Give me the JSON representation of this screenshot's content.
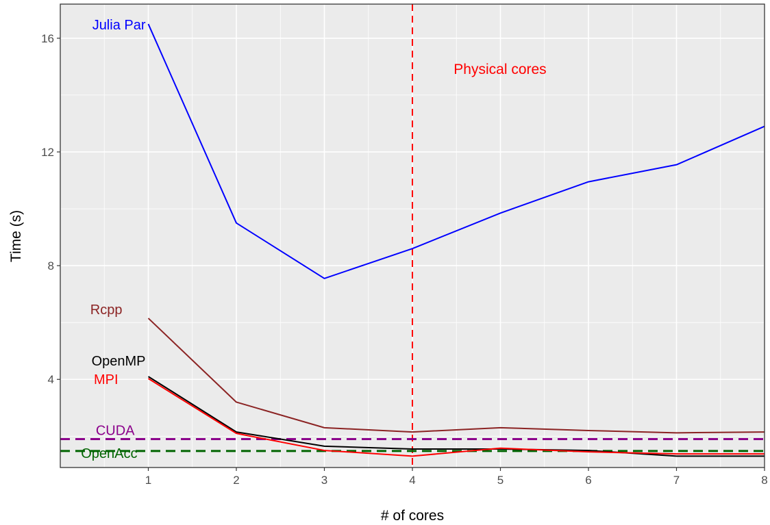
{
  "chart_data": {
    "type": "line",
    "title": "",
    "xlabel": "# of cores",
    "ylabel": "Time (s)",
    "x": [
      1,
      2,
      3,
      4,
      5,
      6,
      7,
      8
    ],
    "xlim": [
      0.0,
      8.0
    ],
    "ylim": [
      0.9,
      17.2
    ],
    "xticks": [
      1,
      2,
      3,
      4,
      5,
      6,
      7,
      8
    ],
    "yticks": [
      4,
      8,
      12,
      16
    ],
    "grid": true,
    "background": "#EBEBEB",
    "series": [
      {
        "name": "Julia Par",
        "color": "#0000FF",
        "style": "solid",
        "values": [
          16.5,
          9.5,
          7.55,
          8.6,
          9.85,
          10.95,
          11.55,
          12.9
        ]
      },
      {
        "name": "Rcpp",
        "color": "#8B2323",
        "style": "solid",
        "values": [
          6.15,
          3.2,
          2.3,
          2.15,
          2.3,
          2.2,
          2.12,
          2.15
        ]
      },
      {
        "name": "OpenMP",
        "color": "#000000",
        "style": "solid",
        "values": [
          4.1,
          2.15,
          1.65,
          1.55,
          1.55,
          1.5,
          1.3,
          1.3
        ]
      },
      {
        "name": "MPI",
        "color": "#FF0000",
        "style": "solid",
        "values": [
          4.03,
          2.1,
          1.5,
          1.3,
          1.58,
          1.45,
          1.38,
          1.38
        ]
      },
      {
        "name": "CUDA",
        "color": "#8B008B",
        "style": "dashed",
        "values": [
          1.9,
          1.9,
          1.9,
          1.9,
          1.9,
          1.9,
          1.9,
          1.9
        ]
      },
      {
        "name": "OpenAcc",
        "color": "#006400",
        "style": "dashed",
        "values": [
          1.48,
          1.48,
          1.48,
          1.48,
          1.48,
          1.48,
          1.48,
          1.48
        ]
      }
    ],
    "annotations": [
      {
        "type": "vline",
        "x": 4,
        "color": "#FF0000",
        "style": "dashed"
      },
      {
        "type": "text",
        "text": "Physical cores",
        "color": "#FF0000"
      }
    ]
  }
}
